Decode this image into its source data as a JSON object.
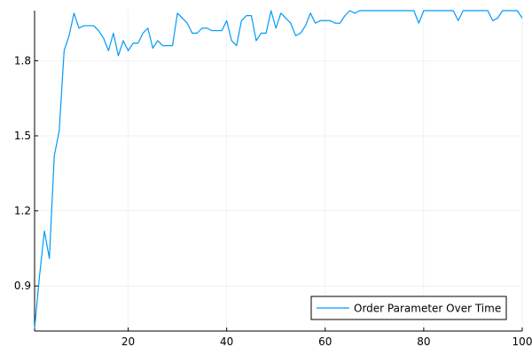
{
  "chart_data": {
    "type": "line",
    "title": "",
    "xlabel": "",
    "ylabel": "",
    "xlim": [
      1,
      100
    ],
    "ylim": [
      0.72,
      2.0
    ],
    "x_ticks": [
      20,
      40,
      60,
      80,
      100
    ],
    "y_ticks": [
      0.9,
      1.2,
      1.5,
      1.8
    ],
    "x_tick_labels": [
      "20",
      "40",
      "60",
      "80",
      "100"
    ],
    "y_tick_labels": [
      "0.9",
      "1.2",
      "1.5",
      "1.8"
    ],
    "grid": true,
    "legend_position": "bottom-right",
    "series": [
      {
        "name": "Order Parameter Over Time",
        "color": "#009af9",
        "x": [
          1,
          2,
          3,
          4,
          5,
          6,
          7,
          8,
          9,
          10,
          11,
          12,
          13,
          14,
          15,
          16,
          17,
          18,
          19,
          20,
          21,
          22,
          23,
          24,
          25,
          26,
          27,
          28,
          29,
          30,
          31,
          32,
          33,
          34,
          35,
          36,
          37,
          38,
          39,
          40,
          41,
          42,
          43,
          44,
          45,
          46,
          47,
          48,
          49,
          50,
          51,
          52,
          53,
          54,
          55,
          56,
          57,
          58,
          59,
          60,
          61,
          62,
          63,
          64,
          65,
          66,
          67,
          68,
          69,
          70,
          71,
          72,
          73,
          74,
          75,
          76,
          77,
          78,
          79,
          80,
          81,
          82,
          83,
          84,
          85,
          86,
          87,
          88,
          89,
          90,
          91,
          92,
          93,
          94,
          95,
          96,
          97,
          98,
          99,
          100
        ],
        "y": [
          0.73,
          0.94,
          1.12,
          1.01,
          1.42,
          1.52,
          1.84,
          1.9,
          1.99,
          1.93,
          1.94,
          1.94,
          1.94,
          1.92,
          1.89,
          1.84,
          1.91,
          1.82,
          1.88,
          1.84,
          1.87,
          1.87,
          1.91,
          1.93,
          1.85,
          1.88,
          1.86,
          1.86,
          1.86,
          1.99,
          1.97,
          1.95,
          1.91,
          1.91,
          1.93,
          1.93,
          1.92,
          1.92,
          1.92,
          1.96,
          1.88,
          1.86,
          1.96,
          1.98,
          1.98,
          1.88,
          1.91,
          1.91,
          2.0,
          1.93,
          1.99,
          1.97,
          1.95,
          1.9,
          1.91,
          1.94,
          1.99,
          1.95,
          1.96,
          1.96,
          1.96,
          1.95,
          1.95,
          1.98,
          2.0,
          1.99,
          2.0,
          2.0,
          2.0,
          2.0,
          2.0,
          2.0,
          2.0,
          2.0,
          2.0,
          2.0,
          2.0,
          2.0,
          1.95,
          2.0,
          2.0,
          2.0,
          2.0,
          2.0,
          2.0,
          2.0,
          1.96,
          2.0,
          2.0,
          2.0,
          2.0,
          2.0,
          2.0,
          1.96,
          1.97,
          2.0,
          2.0,
          2.0,
          2.0,
          1.97
        ]
      }
    ]
  }
}
